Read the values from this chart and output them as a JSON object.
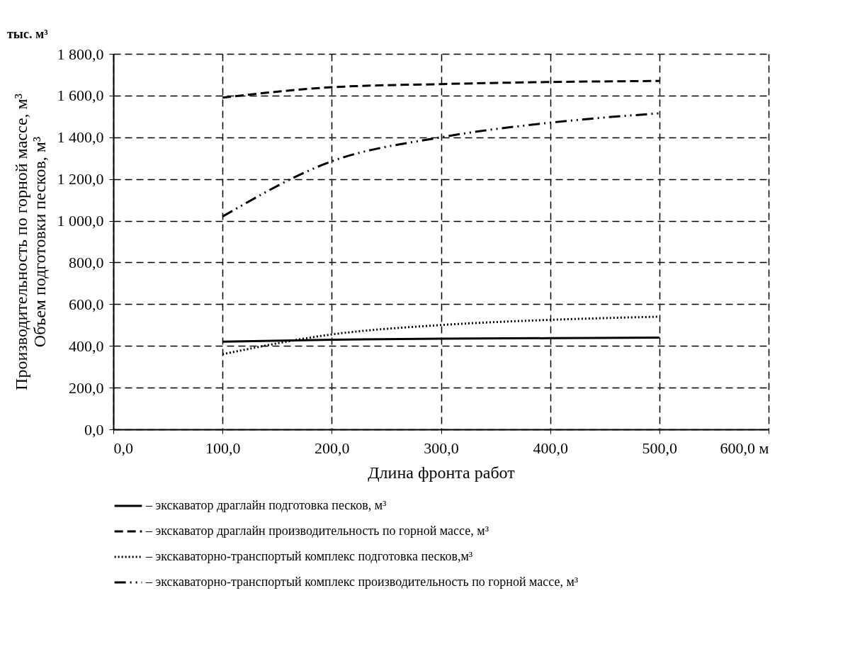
{
  "chart_data": {
    "type": "line",
    "xlabel": "Длина  фронта  работ",
    "ylabel": "Производительность  по горной массе, м³\nОбъем подготовки песков, м³",
    "annotations": [
      "тыс. м³"
    ],
    "x": [
      100,
      200,
      300,
      400,
      500
    ],
    "series": [
      {
        "name": "– экскаватор драглайн подготовка песков, м³",
        "color": "#000000",
        "line_style": "solid",
        "values": [
          420,
          430,
          435,
          437,
          440
        ]
      },
      {
        "name": "– экскаватор драглайн производительность по горной массе, м³",
        "color": "#000000",
        "line_style": "dashed",
        "values": [
          1590,
          1640,
          1655,
          1665,
          1670
        ]
      },
      {
        "name": "– экскаваторно-транспортый комплекс подготовка песков,м³",
        "color": "#000000",
        "line_style": "dotted",
        "values": [
          360,
          455,
          500,
          525,
          540
        ]
      },
      {
        "name": "– экскаваторно-транспортый комплекс производительность по горной массе, м³",
        "color": "#000000",
        "line_style": "dashdot",
        "values": [
          1020,
          1285,
          1400,
          1470,
          1515
        ]
      }
    ],
    "xlim": [
      0,
      600
    ],
    "xticks": [
      {
        "value": 0,
        "label": "0,0"
      },
      {
        "value": 100,
        "label": "100,0"
      },
      {
        "value": 200,
        "label": "200,0"
      },
      {
        "value": 300,
        "label": "300,0"
      },
      {
        "value": 400,
        "label": "400,0"
      },
      {
        "value": 500,
        "label": "500,0"
      },
      {
        "value": 600,
        "label": "600,0 м"
      }
    ],
    "ylim": [
      0,
      1800
    ],
    "yticks": [
      {
        "value": 0,
        "label": "0,0"
      },
      {
        "value": 200,
        "label": "200,0"
      },
      {
        "value": 400,
        "label": "400,0"
      },
      {
        "value": 600,
        "label": "600,0"
      },
      {
        "value": 800,
        "label": "800,0"
      },
      {
        "value": 1000,
        "label": "1 000,0"
      },
      {
        "value": 1200,
        "label": "1 200,0"
      },
      {
        "value": 1400,
        "label": "1 400,0"
      },
      {
        "value": 1600,
        "label": "1 600,0"
      },
      {
        "value": 1800,
        "label": "1 800,0"
      }
    ],
    "grid": true,
    "legend": "bottom",
    "marker": "none"
  }
}
